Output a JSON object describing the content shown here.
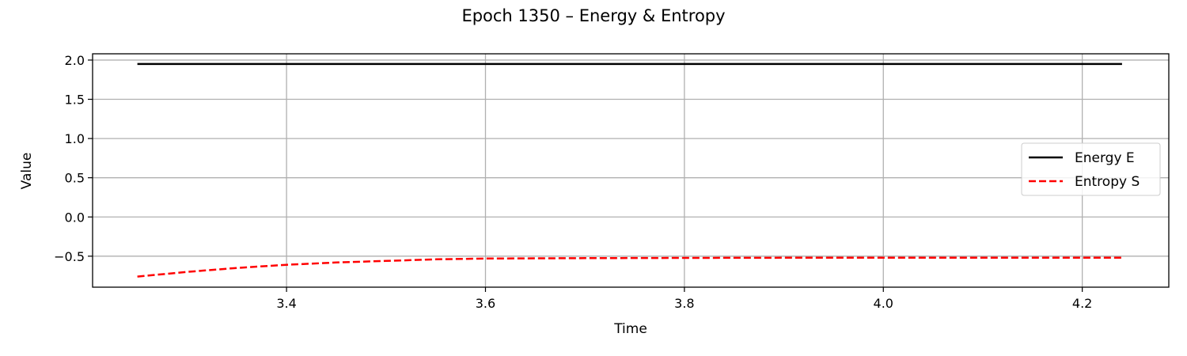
{
  "chart_data": {
    "type": "line",
    "title": "Epoch 1350 – Energy & Entropy",
    "xlabel": "Time",
    "ylabel": "Value",
    "xlim": [
      3.205,
      4.287
    ],
    "ylim": [
      -0.895,
      2.08
    ],
    "xticks": [
      3.4,
      3.6,
      3.8,
      4.0,
      4.2
    ],
    "xtick_labels": [
      "3.4",
      "3.6",
      "3.8",
      "4.0",
      "4.2"
    ],
    "yticks": [
      2.0,
      1.5,
      1.0,
      0.5,
      0.0,
      -0.5
    ],
    "ytick_labels": [
      "2.0",
      "1.5",
      "1.0",
      "0.5",
      "0.0",
      "−0.5"
    ],
    "grid": true,
    "legend_position": "center-right",
    "series": [
      {
        "name": "Energy E",
        "color": "#000000",
        "style": "solid",
        "x": [
          3.25,
          3.4,
          3.6,
          3.8,
          4.0,
          4.24
        ],
        "y": [
          1.95,
          1.95,
          1.95,
          1.95,
          1.95,
          1.95
        ]
      },
      {
        "name": "Entropy S",
        "color": "#ff0000",
        "style": "dashed",
        "x": [
          3.25,
          3.3,
          3.35,
          3.4,
          3.45,
          3.5,
          3.55,
          3.6,
          3.7,
          3.8,
          3.9,
          4.0,
          4.1,
          4.24
        ],
        "y": [
          -0.76,
          -0.7,
          -0.65,
          -0.61,
          -0.58,
          -0.56,
          -0.54,
          -0.53,
          -0.525,
          -0.522,
          -0.52,
          -0.52,
          -0.52,
          -0.52
        ]
      }
    ]
  }
}
